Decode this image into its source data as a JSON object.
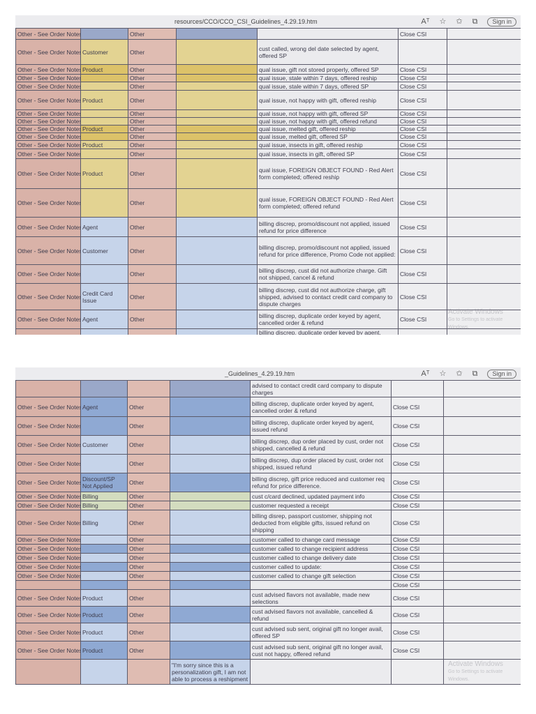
{
  "browser": {
    "url_top": "resources/CCO/CCO_CSI_Guidelines_4.29.19.htm",
    "url_bottom": "_Guidelines_4.29.19.htm",
    "icons": [
      "read-aloud-icon",
      "favorite-add-icon",
      "favorites-icon",
      "collections-icon"
    ],
    "sign_in": "Sign in",
    "watermark_title": "Activate Windows",
    "watermark_sub": "Go to Settings to activate Windows."
  },
  "colors": {
    "yellow_light": "#e3d392",
    "yellow_dark": "#dcc269",
    "blue_dark": "#8fa9d3",
    "blue_light": "#c6d4ea",
    "green": "#d3dcbf",
    "blue_grey": "#9aa8c9"
  },
  "screen1": {
    "rows": [
      {
        "a": "Other - See Order Notes",
        "b": "",
        "bc": "blue_grey",
        "c": "Other",
        "dc": "blue_grey",
        "d": "",
        "e": "",
        "f": "Close CSI"
      },
      {
        "a": "Other - See Order Notes",
        "b": "Customer",
        "bc": "yellow_light",
        "c": "Other",
        "dc": "yellow_light",
        "d": "",
        "e": "cust called, wrong del date selected by agent, offered SP",
        "f": ""
      },
      {
        "a": "Other - See Order Notes",
        "b": "Product",
        "bc": "yellow_dark",
        "c": "Other",
        "dc": "yellow_dark",
        "d": "",
        "e": "qual issue, gift not stored properly, offered SP",
        "f": "Close CSI"
      },
      {
        "a": "Other - See Order Notes",
        "b": "",
        "bc": "yellow_dark",
        "c": "Other",
        "dc": "yellow_dark",
        "d": "",
        "e": "qual issue, stale within 7 days, offered reship",
        "f": "Close CSI"
      },
      {
        "a": "Other - See Order Notes",
        "b": "",
        "bc": "yellow_light",
        "c": "Other",
        "dc": "yellow_light",
        "d": "",
        "e": "qual issue, stale within 7 days, offered SP",
        "f": "Close CSI"
      },
      {
        "a": "Other - See Order Notes",
        "b": "Product",
        "bc": "yellow_light",
        "c": "Other",
        "dc": "yellow_light",
        "d": "",
        "e": "qual issue, not happy with gift, offered reship",
        "f": "Close CSI"
      },
      {
        "a": "Other - See Order Notes",
        "b": "",
        "bc": "yellow_light",
        "c": "Other",
        "dc": "yellow_light",
        "d": "",
        "e": "qual issue, not happy with gift, offered SP",
        "f": "Close CSI"
      },
      {
        "a": "Other - See Order Notes",
        "b": "",
        "bc": "yellow_light",
        "c": "Other",
        "dc": "yellow_light",
        "d": "",
        "e": "qual issue, not happy with gift, offered refund",
        "f": "Close CSI"
      },
      {
        "a": "Other - See Order Notes",
        "b": "Product",
        "bc": "yellow_dark",
        "c": "Other",
        "dc": "yellow_dark",
        "d": "",
        "e": "qual issue, melted gift, offered reship",
        "f": "Close CSI"
      },
      {
        "a": "Other - See Order Notes",
        "b": "",
        "bc": "yellow_dark",
        "c": "Other",
        "dc": "yellow_dark",
        "d": "",
        "e": "qual issue, melted gift, offered SP",
        "f": "Close CSI"
      },
      {
        "a": "Other - See Order Notes",
        "b": "Product",
        "bc": "yellow_light",
        "c": "Other",
        "dc": "yellow_light",
        "d": "",
        "e": "qual issue, insects in gift, offered reship",
        "f": "Close CSI"
      },
      {
        "a": "Other - See Order Notes",
        "b": "",
        "bc": "yellow_light",
        "c": "Other",
        "dc": "yellow_light",
        "d": "",
        "e": "qual issue, insects in gift, offered SP",
        "f": "Close CSI"
      },
      {
        "a": "Other - See Order Notes",
        "b": "Product",
        "bc": "yellow_light",
        "c": "Other",
        "dc": "yellow_light",
        "d": "",
        "e": "qual issue, FOREIGN OBJECT FOUND - Red Alert form completed; offered reship",
        "f": "Close CSI"
      },
      {
        "a": "Other - See Order Notes",
        "b": "",
        "bc": "yellow_light",
        "c": "Other",
        "dc": "yellow_light",
        "d": "",
        "e": "qual issue, FOREIGN OBJECT FOUND - Red Alert form completed; offered refund",
        "f": "Close CSI"
      },
      {
        "a": "Other - See Order Notes",
        "b": "Agent",
        "bc": "blue_light",
        "c": "Other",
        "dc": "blue_light",
        "d": "",
        "e": "billing discrep, promo/discount not applied, issued refund for price difference",
        "f": "Close CSI"
      },
      {
        "a": "Other - See Order Notes",
        "b": "Customer",
        "bc": "blue_light",
        "c": "Other",
        "dc": "blue_light",
        "d": "",
        "e": "billing discrep, promo/discount not applied, issued refund for price difference, Promo Code not applied:",
        "f": "Close CSI"
      },
      {
        "a": "Other - See Order Notes",
        "b": "",
        "bc": "blue_light",
        "c": "Other",
        "dc": "blue_light",
        "d": "",
        "e": "billing discrep, cust did not authorize charge. Gift not shipped, cancel & refund",
        "f": "Close CSI"
      },
      {
        "a": "Other - See Order Notes",
        "b": "Credit Card Issue",
        "bc": "blue_light",
        "c": "Other",
        "dc": "blue_light",
        "d": "",
        "e": "billing discrep, cust did not authorize charge, gift shipped, advised to contact credit card company to dispute charges",
        "f": "Close CSI"
      },
      {
        "a": "Other - See Order Notes",
        "b": "Agent",
        "bc": "blue_light",
        "c": "Other",
        "dc": "blue_light",
        "d": "",
        "e": "billing discrep, duplicate order keyed by agent, cancelled order & refund",
        "f": "Close CSI"
      },
      {
        "a": "",
        "b": "",
        "bc": "blue_light",
        "c": "",
        "dc": "blue_light",
        "d": "",
        "e": "billing discrep, duplicate order keyed by agent, issued",
        "f": ""
      }
    ]
  },
  "screen2": {
    "rows": [
      {
        "a": "",
        "b": "",
        "bc": "blue_grey",
        "c": "",
        "dc": "blue_grey",
        "d": "",
        "e": "advised to contact credit card company to dispute charges",
        "f": ""
      },
      {
        "a": "Other - See Order Notes",
        "b": "Agent",
        "bc": "blue_dark",
        "c": "Other",
        "dc": "blue_dark",
        "d": "",
        "e": "billing discrep, duplicate order keyed by agent, cancelled order & refund",
        "f": "Close CSI"
      },
      {
        "a": "Other - See Order Notes",
        "b": "",
        "bc": "blue_dark",
        "c": "Other",
        "dc": "blue_dark",
        "d": "",
        "e": "billing discrep, duplicate order keyed by agent, issued refund",
        "f": "Close CSI"
      },
      {
        "a": "Other - See Order Notes",
        "b": "Customer",
        "bc": "blue_light",
        "c": "Other",
        "dc": "blue_light",
        "d": "",
        "e": "billing discrep, dup order placed by cust, order not shipped, cancelled & refund",
        "f": "Close CSI"
      },
      {
        "a": "Other - See Order Notes",
        "b": "",
        "bc": "blue_light",
        "c": "Other",
        "dc": "blue_light",
        "d": "",
        "e": "billing discrep, dup order placed by cust, order not shipped, issued refund",
        "f": "Close CSI"
      },
      {
        "a": "Other - See Order Notes",
        "b": "Discount/SP Not Applied",
        "bc": "blue_dark",
        "c": "Other",
        "dc": "blue_dark",
        "d": "",
        "e": "billing discrep, gift price reduced and customer req refund for price difference.",
        "f": "Close CSI"
      },
      {
        "a": "Other - See Order Notes",
        "b": "Billing",
        "bc": "green",
        "c": "Other",
        "dc": "green",
        "d": "",
        "e": "cust c/card declined, updated payment info",
        "f": "Close CSI"
      },
      {
        "a": "Other - See Order Notes",
        "b": "Billing",
        "bc": "green",
        "c": "Other",
        "dc": "green",
        "d": "",
        "e": "customer requested a receipt",
        "f": "Close CSI"
      },
      {
        "a": "Other - See Order Notes",
        "b": "Billing",
        "bc": "blue_light",
        "c": "Other",
        "dc": "blue_light",
        "d": "",
        "e": "billing disrep, passport customer, shipping not deducted from eligible gifts, issued refund on shipping",
        "f": "Close CSI"
      },
      {
        "a": "Other - See Order Notes",
        "b": "",
        "bc": "blue_light",
        "c": "Other",
        "dc": "blue_light",
        "d": "",
        "e": "customer called to change card message",
        "f": "Close CSI"
      },
      {
        "a": "Other - See Order Notes",
        "b": "",
        "bc": "blue_dark",
        "c": "Other",
        "dc": "blue_dark",
        "d": "",
        "e": "customer called to change recipient address",
        "f": "Close CSI"
      },
      {
        "a": "Other - See Order Notes",
        "b": "",
        "bc": "blue_light",
        "c": "Other",
        "dc": "blue_light",
        "d": "",
        "e": "customer called to change delivery date",
        "f": "Close CSI"
      },
      {
        "a": "Other - See Order Notes",
        "b": "",
        "bc": "blue_dark",
        "c": "Other",
        "dc": "blue_dark",
        "d": "",
        "e": "customer called to update:",
        "f": "Close CSI"
      },
      {
        "a": "Other - See Order Notes",
        "b": "",
        "bc": "blue_light",
        "c": "Other",
        "dc": "blue_light",
        "d": "",
        "e": "customer called to change gift selection",
        "f": "Close CSI"
      },
      {
        "a": "",
        "b": "",
        "bc": "blue_dark",
        "c": "",
        "dc": "blue_dark",
        "d": "",
        "e": "",
        "f": "Close CSI"
      },
      {
        "a": "Other - See Order Notes",
        "b": "Product",
        "bc": "blue_light",
        "c": "Other",
        "dc": "blue_light",
        "d": "",
        "e": "cust advised flavors not available, made new selections",
        "f": "Close CSI"
      },
      {
        "a": "Other - See Order Notes",
        "b": "Product",
        "bc": "blue_dark",
        "c": "Other",
        "dc": "blue_dark",
        "d": "",
        "e": "cust advised flavors not available, cancelled & refund",
        "f": "Close CSI"
      },
      {
        "a": "Other - See Order Notes",
        "b": "Product",
        "bc": "blue_light",
        "c": "Other",
        "dc": "blue_light",
        "d": "",
        "e": "cust advised sub sent, original gift no longer avail, offered SP",
        "f": "Close CSI"
      },
      {
        "a": "Other - See Order Notes",
        "b": "Product",
        "bc": "blue_dark",
        "c": "Other",
        "dc": "blue_dark",
        "d": "",
        "e": "cust advised sub sent, original gift no longer avail, cust not happy, offered refund",
        "f": "Close CSI"
      },
      {
        "a": "",
        "b": "",
        "bc": "blue_light",
        "c": "",
        "dc": "blue_light",
        "d": "\"I'm sorry since this is a personalization gift, I am not able to process a reshipment",
        "e": "",
        "f": ""
      }
    ]
  }
}
